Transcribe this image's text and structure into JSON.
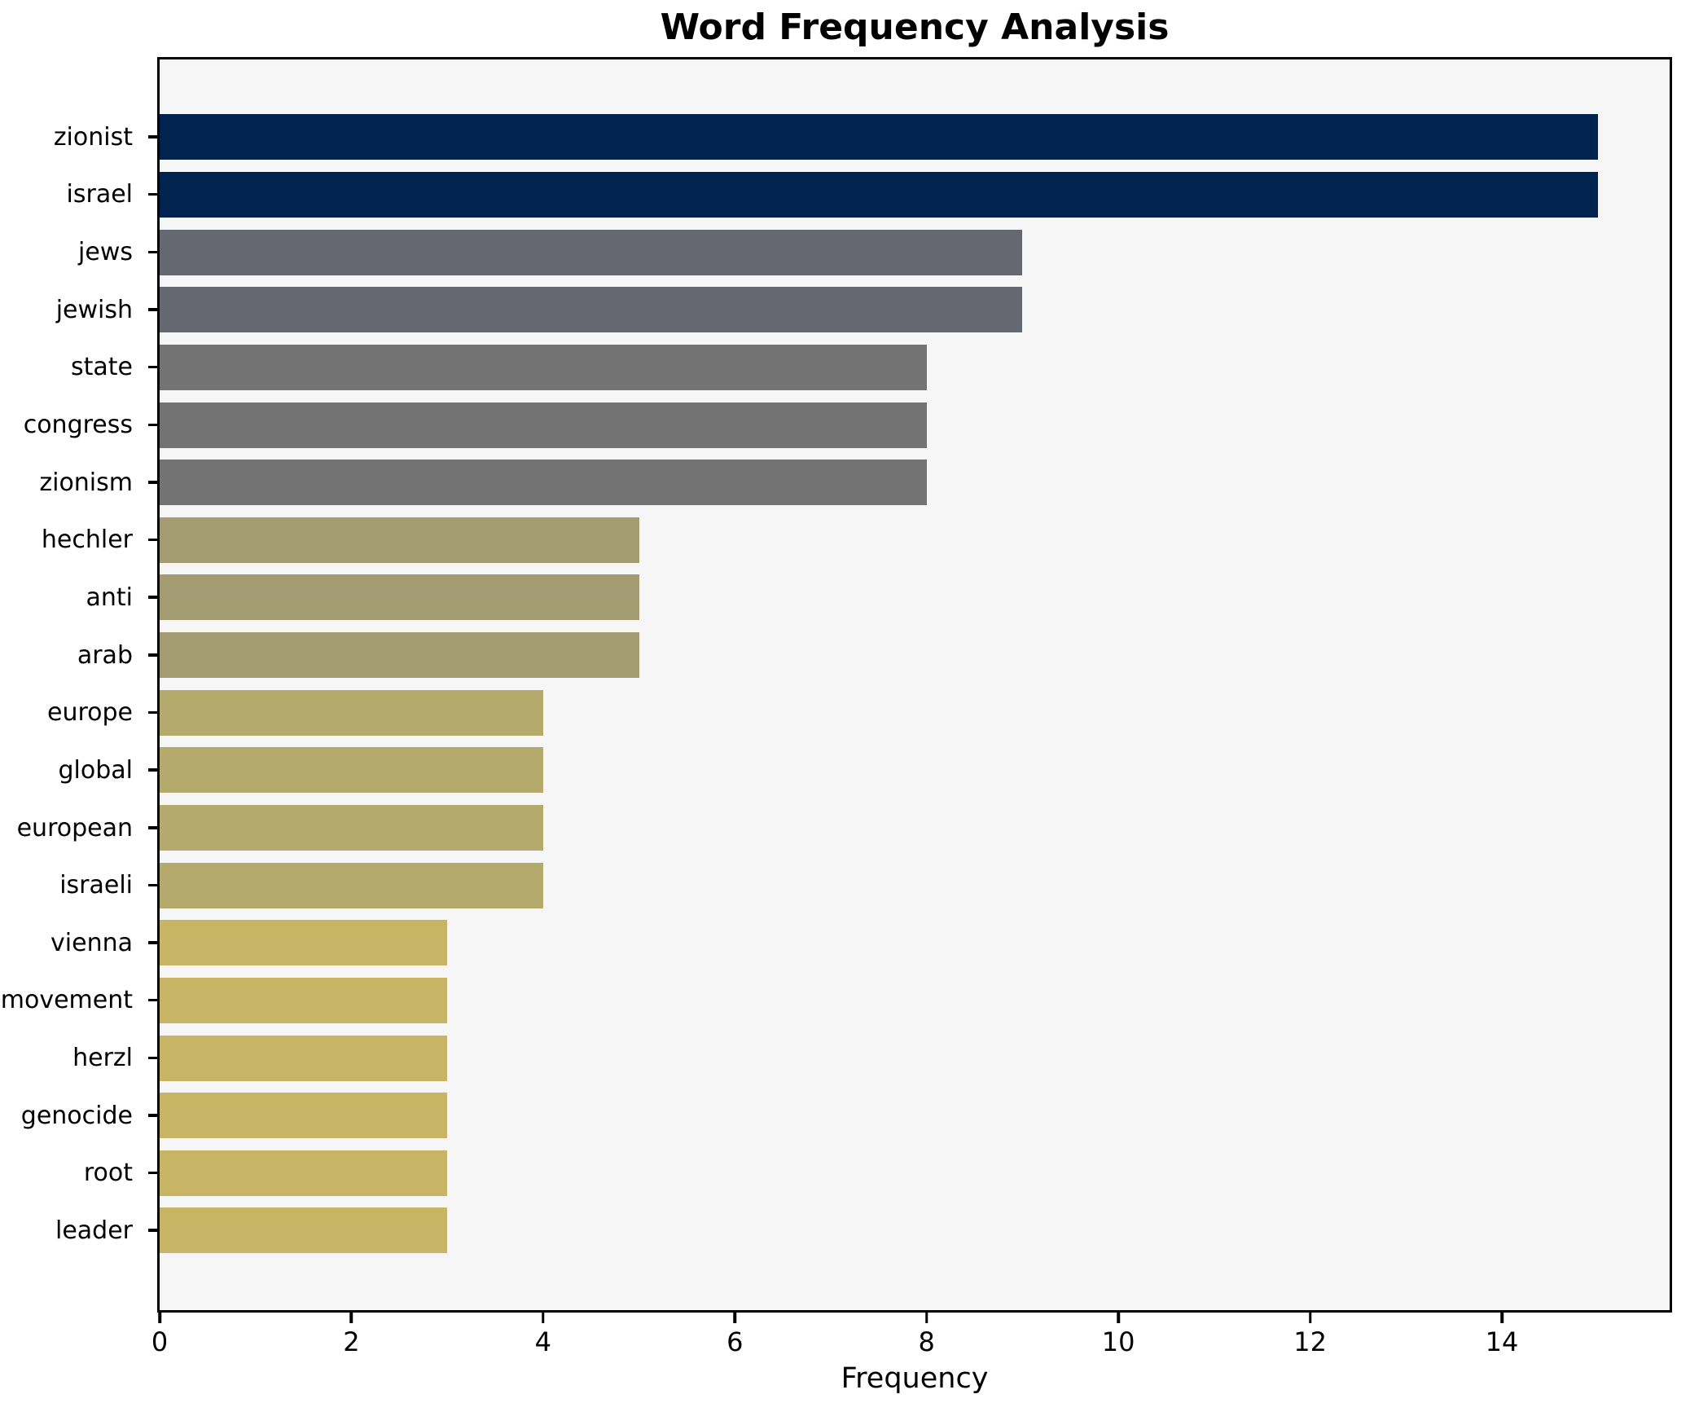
{
  "chart_data": {
    "type": "bar",
    "orientation": "horizontal",
    "title": "Word Frequency Analysis",
    "xlabel": "Frequency",
    "categories": [
      "zionist",
      "israel",
      "jews",
      "jewish",
      "state",
      "congress",
      "zionism",
      "hechler",
      "anti",
      "arab",
      "europe",
      "global",
      "european",
      "israeli",
      "vienna",
      "movement",
      "herzl",
      "genocide",
      "root",
      "leader"
    ],
    "values": [
      15,
      15,
      9,
      9,
      8,
      8,
      8,
      5,
      5,
      5,
      4,
      4,
      4,
      4,
      3,
      3,
      3,
      3,
      3,
      3
    ],
    "bar_colors": [
      "#00244f",
      "#00244f",
      "#656870",
      "#656870",
      "#747374",
      "#747374",
      "#747374",
      "#a39b72",
      "#a39b72",
      "#a39b72",
      "#b4aa6c",
      "#b4aa6c",
      "#b4aa6c",
      "#b4aa6c",
      "#c7b565",
      "#c7b565",
      "#c7b565",
      "#c7b565",
      "#c7b565",
      "#c7b565"
    ],
    "xlim": [
      0,
      15.75
    ],
    "xticks": [
      0,
      2,
      4,
      6,
      8,
      10,
      12,
      14
    ],
    "grid": false,
    "legend_position": "none",
    "colors": {
      "plot_background": "#f6f6f7",
      "figure_background": "#ffffff",
      "spine": "#000000",
      "text": "#000000"
    }
  }
}
